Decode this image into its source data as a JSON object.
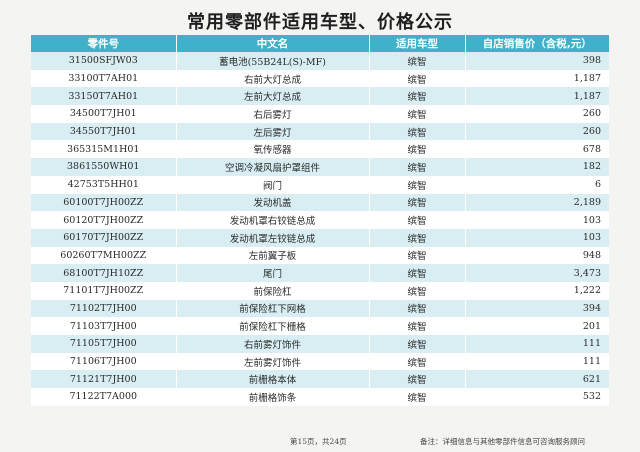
{
  "title": "常用零部件适用车型、价格公示",
  "headers": {
    "code": "零件号",
    "name": "中文名",
    "model": "适用车型",
    "price": "自店销售价（含税,元）"
  },
  "rows": [
    {
      "code": "31500SFJW03",
      "name": "蓄电池(55B24L(S)-MF)",
      "model": "缤智",
      "price": "398"
    },
    {
      "code": "33100T7AH01",
      "name": "右前大灯总成",
      "model": "缤智",
      "price": "1,187"
    },
    {
      "code": "33150T7AH01",
      "name": "左前大灯总成",
      "model": "缤智",
      "price": "1,187"
    },
    {
      "code": "34500T7JH01",
      "name": "右后雾灯",
      "model": "缤智",
      "price": "260"
    },
    {
      "code": "34550T7JH01",
      "name": "左后雾灯",
      "model": "缤智",
      "price": "260"
    },
    {
      "code": "365315M1H01",
      "name": "氧传感器",
      "model": "缤智",
      "price": "678"
    },
    {
      "code": "3861550WH01",
      "name": "空调冷凝风扇护罩组件",
      "model": "缤智",
      "price": "182"
    },
    {
      "code": "42753T5HH01",
      "name": "阀门",
      "model": "缤智",
      "price": "6"
    },
    {
      "code": "60100T7JH00ZZ",
      "name": "发动机盖",
      "model": "缤智",
      "price": "2,189"
    },
    {
      "code": "60120T7JH00ZZ",
      "name": "发动机罩右铰链总成",
      "model": "缤智",
      "price": "103"
    },
    {
      "code": "60170T7JH00ZZ",
      "name": "发动机罩左铰链总成",
      "model": "缤智",
      "price": "103"
    },
    {
      "code": "60260T7MH00ZZ",
      "name": "左前翼子板",
      "model": "缤智",
      "price": "948"
    },
    {
      "code": "68100T7JH10ZZ",
      "name": "尾门",
      "model": "缤智",
      "price": "3,473"
    },
    {
      "code": "71101T7JH00ZZ",
      "name": "前保险杠",
      "model": "缤智",
      "price": "1,222"
    },
    {
      "code": "71102T7JH00",
      "name": "前保险杠下网格",
      "model": "缤智",
      "price": "394"
    },
    {
      "code": "71103T7JH00",
      "name": "前保险杠下栅格",
      "model": "缤智",
      "price": "201"
    },
    {
      "code": "71105T7JH00",
      "name": "右前雾灯饰件",
      "model": "缤智",
      "price": "111"
    },
    {
      "code": "71106T7JH00",
      "name": "左前雾灯饰件",
      "model": "缤智",
      "price": "111"
    },
    {
      "code": "71121T7JH00",
      "name": "前栅格本体",
      "model": "缤智",
      "price": "621"
    },
    {
      "code": "71122T7A000",
      "name": "前栅格饰条",
      "model": "缤智",
      "price": "532"
    }
  ],
  "footer": {
    "page_label": "第15页，共24页",
    "note": "备注：详细信息与其他零部件信息可咨询服务顾问"
  }
}
